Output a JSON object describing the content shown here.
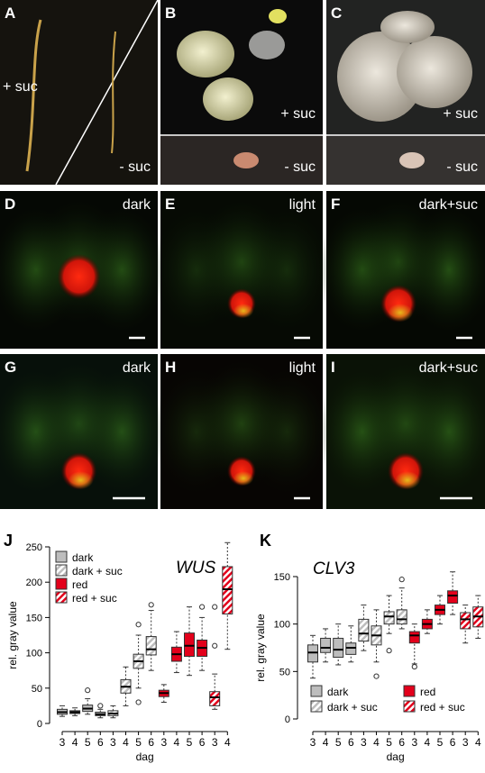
{
  "panels": [
    {
      "letter": "A",
      "labels": [
        "+ suc",
        "- suc"
      ]
    },
    {
      "letter": "B",
      "labels": [
        "+ suc",
        "- suc"
      ]
    },
    {
      "letter": "C",
      "labels": [
        "+ suc",
        "- suc"
      ]
    },
    {
      "letter": "D",
      "labels": [
        "dark"
      ]
    },
    {
      "letter": "E",
      "labels": [
        "light"
      ]
    },
    {
      "letter": "F",
      "labels": [
        "dark+suc"
      ]
    },
    {
      "letter": "G",
      "labels": [
        "dark"
      ]
    },
    {
      "letter": "H",
      "labels": [
        "light"
      ]
    },
    {
      "letter": "I",
      "labels": [
        "dark+suc"
      ]
    }
  ],
  "chart_data": [
    {
      "type": "box",
      "letter": "J",
      "title": "WUS",
      "ylabel": "rel. gray value",
      "xlabel": "dag",
      "ylim": [
        0,
        250
      ],
      "yticks": [
        0,
        50,
        100,
        150,
        200,
        250
      ],
      "legend": "upper left",
      "series": [
        {
          "name": "dark",
          "color": "#bdbdbd",
          "hatch": false,
          "days": [
            "3",
            "4",
            "5",
            "6"
          ],
          "low": [
            10,
            11,
            13,
            8
          ],
          "q1": [
            13,
            14,
            17,
            11
          ],
          "median": [
            16,
            16,
            21,
            13
          ],
          "q3": [
            20,
            18,
            26,
            16
          ],
          "high": [
            25,
            22,
            35,
            20
          ],
          "outliers": [
            [],
            [],
            [
              47
            ],
            [
              25
            ]
          ]
        },
        {
          "name": "dark + suc",
          "color": "#bdbdbd",
          "hatch": true,
          "days": [
            "3",
            "4",
            "5",
            "6"
          ],
          "low": [
            8,
            25,
            50,
            75
          ],
          "q1": [
            11,
            43,
            78,
            97
          ],
          "median": [
            14,
            52,
            88,
            105
          ],
          "q3": [
            18,
            62,
            98,
            123
          ],
          "high": [
            25,
            80,
            125,
            160
          ],
          "outliers": [
            [],
            [],
            [
              30,
              140
            ],
            [
              168
            ]
          ]
        },
        {
          "name": "red",
          "color": "#e3001b",
          "hatch": false,
          "days": [
            "3",
            "4",
            "5",
            "6"
          ],
          "low": [
            30,
            72,
            68,
            75
          ],
          "q1": [
            38,
            88,
            95,
            95
          ],
          "median": [
            43,
            98,
            110,
            107
          ],
          "q3": [
            47,
            108,
            128,
            118
          ],
          "high": [
            55,
            130,
            165,
            150
          ],
          "outliers": [
            [],
            [],
            [],
            [
              165
            ]
          ]
        },
        {
          "name": "red + suc",
          "color": "#e3001b",
          "hatch": true,
          "days": [
            "3",
            "4"
          ],
          "low": [
            20,
            105
          ],
          "q1": [
            25,
            155
          ],
          "median": [
            37,
            190
          ],
          "q3": [
            45,
            222
          ],
          "high": [
            70,
            256
          ],
          "outliers": [
            [
              110,
              165
            ],
            []
          ]
        }
      ]
    },
    {
      "type": "box",
      "letter": "K",
      "title": "CLV3",
      "ylabel": "rel. gray value",
      "xlabel": "dag",
      "ylim": [
        0,
        150
      ],
      "yticks": [
        0,
        50,
        100,
        150
      ],
      "legend": "bottom",
      "series": [
        {
          "name": "dark",
          "color": "#bdbdbd",
          "hatch": false,
          "days": [
            "3",
            "4",
            "5",
            "6"
          ],
          "low": [
            43,
            60,
            57,
            60
          ],
          "q1": [
            60,
            70,
            65,
            68
          ],
          "median": [
            70,
            75,
            73,
            75
          ],
          "q3": [
            78,
            85,
            85,
            80
          ],
          "high": [
            88,
            95,
            100,
            98
          ],
          "outliers": [
            [],
            [],
            [],
            []
          ]
        },
        {
          "name": "dark + suc",
          "color": "#bdbdbd",
          "hatch": true,
          "days": [
            "3",
            "4",
            "5",
            "6"
          ],
          "low": [
            72,
            60,
            90,
            95
          ],
          "q1": [
            82,
            78,
            100,
            100
          ],
          "median": [
            90,
            88,
            108,
            105
          ],
          "q3": [
            105,
            98,
            113,
            115
          ],
          "high": [
            120,
            115,
            130,
            138
          ],
          "outliers": [
            [],
            [
              45
            ],
            [
              72
            ],
            [
              147
            ]
          ]
        },
        {
          "name": "red",
          "color": "#e3001b",
          "hatch": false,
          "days": [
            "3",
            "4",
            "5",
            "6"
          ],
          "low": [
            58,
            90,
            100,
            110
          ],
          "q1": [
            80,
            95,
            110,
            122
          ],
          "median": [
            88,
            100,
            115,
            130
          ],
          "q3": [
            92,
            105,
            120,
            135
          ],
          "high": [
            100,
            115,
            130,
            155
          ],
          "outliers": [
            [
              55
            ],
            [],
            [],
            []
          ]
        },
        {
          "name": "red + suc",
          "color": "#e3001b",
          "hatch": true,
          "days": [
            "3",
            "4"
          ],
          "low": [
            80,
            85
          ],
          "q1": [
            95,
            97
          ],
          "median": [
            105,
            108
          ],
          "q3": [
            112,
            118
          ],
          "high": [
            120,
            130
          ],
          "outliers": [
            [],
            []
          ]
        }
      ]
    }
  ]
}
